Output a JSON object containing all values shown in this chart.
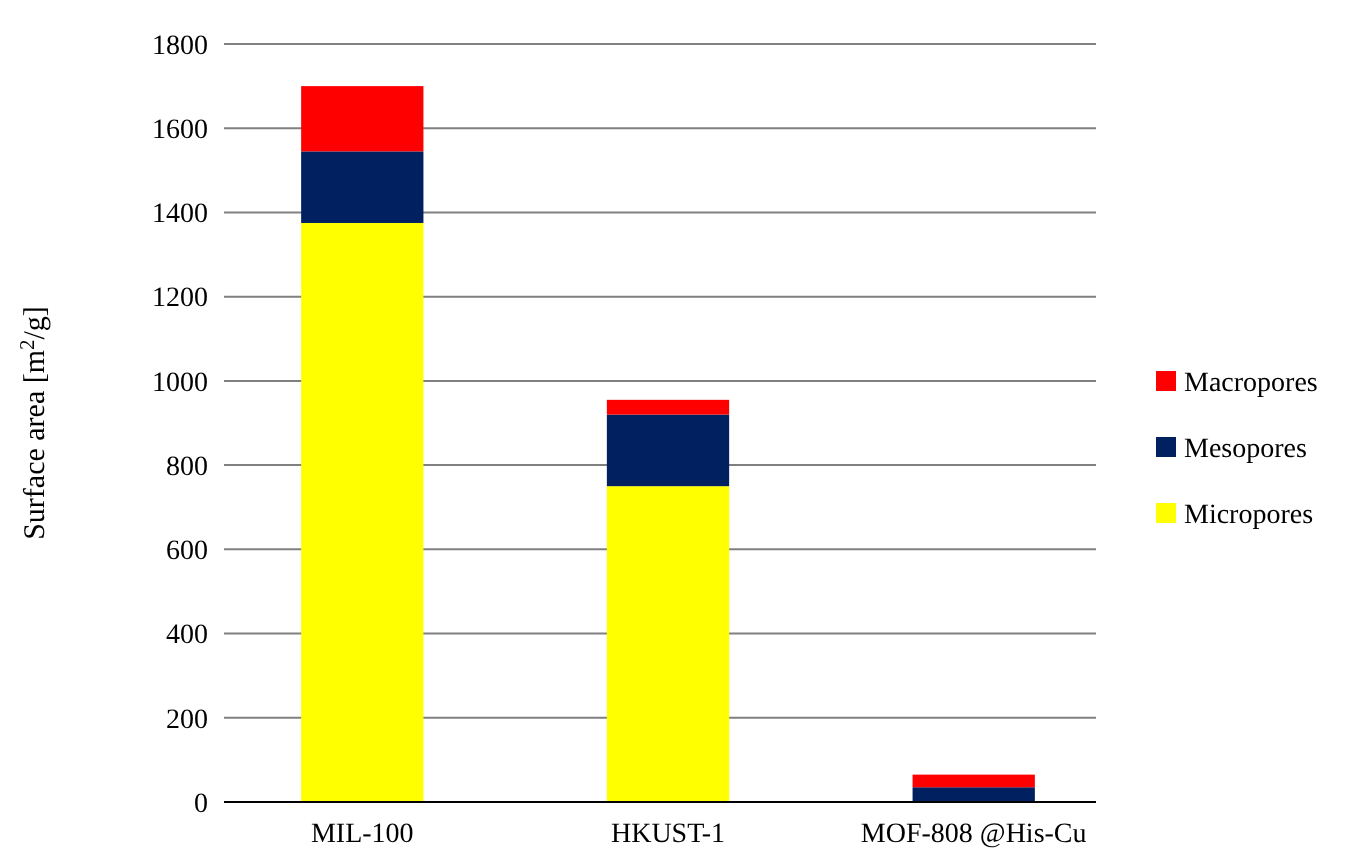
{
  "chart_data": {
    "type": "bar",
    "stacked": true,
    "ylabel": "Surface area [m$^{2}$/g]",
    "categories": [
      "MIL-100",
      "HKUST-1",
      "MOF-808 @His-Cu"
    ],
    "series": [
      {
        "name": "Micropores",
        "color": "#ffff00",
        "values": [
          1375,
          750,
          0
        ]
      },
      {
        "name": "Mesopores",
        "color": "#002060",
        "values": [
          170,
          170,
          35
        ]
      },
      {
        "name": "Macropores",
        "color": "#ff0000",
        "values": [
          155,
          35,
          30
        ]
      }
    ],
    "ylim": [
      0,
      1800
    ],
    "yticks": [
      0,
      200,
      400,
      600,
      800,
      1000,
      1200,
      1400,
      1600,
      1800
    ],
    "grid": "y",
    "legend": "right"
  }
}
